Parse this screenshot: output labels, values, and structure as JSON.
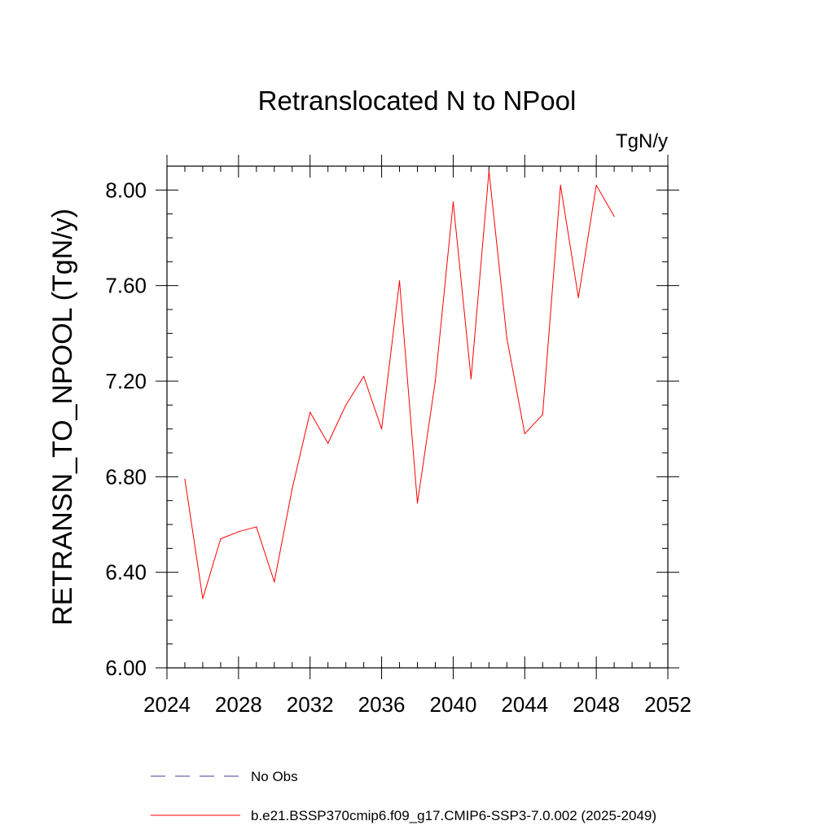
{
  "chart_data": {
    "type": "line",
    "title": "Retranslocated N to NPool",
    "units_label": "TgN/y",
    "xlabel": "",
    "ylabel": "RETRANSN_TO_NPOOL  (TgN/y)",
    "xlim": [
      2024,
      2052
    ],
    "ylim": [
      6.0,
      8.1
    ],
    "x_major_ticks": [
      2024,
      2028,
      2032,
      2036,
      2040,
      2044,
      2048,
      2052
    ],
    "x_tick_labels": [
      "2024",
      "2028",
      "2032",
      "2036",
      "2040",
      "2044",
      "2048",
      "2052"
    ],
    "x_minor_step": 1,
    "y_major_ticks": [
      6.0,
      6.4,
      6.8,
      7.2,
      7.6,
      8.0
    ],
    "y_tick_labels": [
      "6.00",
      "6.40",
      "6.80",
      "7.20",
      "7.60",
      "8.00"
    ],
    "y_minor_step": 0.1,
    "grid": false,
    "series": [
      {
        "name": "b.e21.BSSP370cmip6.f09_g17.CMIP6-SSP3-7.0.002 (2025-2049)",
        "color": "#ff0000",
        "style": "solid",
        "x": [
          2025,
          2026,
          2027,
          2028,
          2029,
          2030,
          2031,
          2032,
          2033,
          2034,
          2035,
          2036,
          2037,
          2038,
          2039,
          2040,
          2041,
          2042,
          2043,
          2044,
          2045,
          2046,
          2047,
          2048,
          2049
        ],
        "values": [
          6.79,
          6.29,
          6.54,
          6.57,
          6.59,
          6.36,
          6.75,
          7.07,
          6.94,
          7.1,
          7.22,
          7.0,
          7.62,
          6.69,
          7.2,
          7.95,
          7.21,
          8.08,
          7.38,
          6.98,
          7.06,
          8.02,
          7.55,
          8.02,
          7.89
        ]
      }
    ],
    "legend": {
      "placement": "bottom-left",
      "entries": [
        {
          "label": "No Obs",
          "color": "#4b3c9a",
          "style": "dashed"
        },
        {
          "label": "b.e21.BSSP370cmip6.f09_g17.CMIP6-SSP3-7.0.002 (2025-2049)",
          "color": "#ff0000",
          "style": "solid"
        }
      ]
    }
  }
}
